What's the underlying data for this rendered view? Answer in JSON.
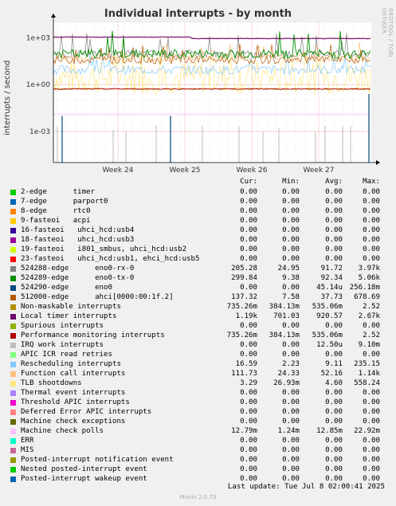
{
  "title": "Individual interrupts - by month",
  "side_tag": "RRDTOOL / TOBI OETIKER",
  "footer": "Last update: Tue Jul  8 02:00:41 2025",
  "version": "Munin 2.0.73",
  "chart_data": {
    "type": "line",
    "title": "Individual interrupts - by month",
    "ylabel": "interrupts / second",
    "y_scale": "log",
    "ylim": [
      1e-05,
      10000
    ],
    "y_ticks": [
      "1e+03",
      "1e+00",
      "1e-03"
    ],
    "y_tick_values": [
      1000,
      1,
      0.001
    ],
    "x_ticks": [
      "Week 24",
      "Week 25",
      "Week 26",
      "Week 27"
    ],
    "grid": true,
    "legend_placement": "below",
    "columns": [
      "Cur:",
      "Min:",
      "Avg:",
      "Max:"
    ],
    "series": [
      {
        "name": "2-edge      timer",
        "color": "#00cc00",
        "cur": "0.00",
        "min": "0.00",
        "avg": "0.00",
        "max": "0.00"
      },
      {
        "name": "7-edge      parport0",
        "color": "#0066b3",
        "cur": "0.00",
        "min": "0.00",
        "avg": "0.00",
        "max": "0.00"
      },
      {
        "name": "8-edge      rtc0",
        "color": "#ff8000",
        "cur": "0.00",
        "min": "0.00",
        "avg": "0.00",
        "max": "0.00"
      },
      {
        "name": "9-fasteoi   acpi",
        "color": "#ffcc00",
        "cur": "0.00",
        "min": "0.00",
        "avg": "0.00",
        "max": "0.00"
      },
      {
        "name": "16-fasteoi   uhci_hcd:usb4",
        "color": "#330099",
        "cur": "0.00",
        "min": "0.00",
        "avg": "0.00",
        "max": "0.00"
      },
      {
        "name": "18-fasteoi   uhci_hcd:usb3",
        "color": "#990099",
        "cur": "0.00",
        "min": "0.00",
        "avg": "0.00",
        "max": "0.00"
      },
      {
        "name": "19-fasteoi   i801_smbus, uhci_hcd:usb2",
        "color": "#ccff00",
        "cur": "0.00",
        "min": "0.00",
        "avg": "0.00",
        "max": "0.00"
      },
      {
        "name": "23-fasteoi   uhci_hcd:usb1, ehci_hcd:usb5",
        "color": "#ff0000",
        "cur": "0.00",
        "min": "0.00",
        "avg": "0.00",
        "max": "0.00"
      },
      {
        "name": "524288-edge      eno0-rx-0",
        "color": "#808080",
        "cur": "205.28",
        "min": "24.95",
        "avg": "91.72",
        "max": "3.97k"
      },
      {
        "name": "524289-edge      eno0-tx-0",
        "color": "#008f00",
        "cur": "299.84",
        "min": "9.38",
        "avg": "92.34",
        "max": "5.06k"
      },
      {
        "name": "524290-edge      eno0",
        "color": "#00487d",
        "cur": "0.00",
        "min": "0.00",
        "avg": "45.14u",
        "max": "256.18m"
      },
      {
        "name": "512000-edge      ahci[0000:00:1f.2]",
        "color": "#b35a00",
        "cur": "137.32",
        "min": "7.58",
        "avg": "37.73",
        "max": "678.69"
      },
      {
        "name": "Non-maskable interrupts",
        "color": "#b38f00",
        "cur": "735.26m",
        "min": "384.13m",
        "avg": "535.06m",
        "max": "2.52"
      },
      {
        "name": "Local timer interrupts",
        "color": "#6b006b",
        "cur": "1.19k",
        "min": "701.03",
        "avg": "920.57",
        "max": "2.67k"
      },
      {
        "name": "Spurious interrupts",
        "color": "#8fb300",
        "cur": "0.00",
        "min": "0.00",
        "avg": "0.00",
        "max": "0.00"
      },
      {
        "name": "Performance monitoring interrupts",
        "color": "#b30000",
        "cur": "735.26m",
        "min": "384.13m",
        "avg": "535.06m",
        "max": "2.52"
      },
      {
        "name": "IRQ work interrupts",
        "color": "#bebebe",
        "cur": "0.00",
        "min": "0.00",
        "avg": "12.50u",
        "max": "9.10m"
      },
      {
        "name": "APIC ICR read retries",
        "color": "#80ff80",
        "cur": "0.00",
        "min": "0.00",
        "avg": "0.00",
        "max": "0.00"
      },
      {
        "name": "Rescheduling interrupts",
        "color": "#80c9ff",
        "cur": "16.59",
        "min": "2.23",
        "avg": "9.11",
        "max": "235.15"
      },
      {
        "name": "Function call interrupts",
        "color": "#ffc080",
        "cur": "111.73",
        "min": "24.33",
        "avg": "52.16",
        "max": "1.14k"
      },
      {
        "name": "TLB shootdowns",
        "color": "#ffe680",
        "cur": "3.29",
        "min": "26.93m",
        "avg": "4.60",
        "max": "558.24"
      },
      {
        "name": "Thermal event interrupts",
        "color": "#aa80ff",
        "cur": "0.00",
        "min": "0.00",
        "avg": "0.00",
        "max": "0.00"
      },
      {
        "name": "Threshold APIC interrupts",
        "color": "#ee00cc",
        "cur": "0.00",
        "min": "0.00",
        "avg": "0.00",
        "max": "0.00"
      },
      {
        "name": "Deferred Error APIC interrupts",
        "color": "#ff8080",
        "cur": "0.00",
        "min": "0.00",
        "avg": "0.00",
        "max": "0.00"
      },
      {
        "name": "Machine check exceptions",
        "color": "#666600",
        "cur": "0.00",
        "min": "0.00",
        "avg": "0.00",
        "max": "0.00"
      },
      {
        "name": "Machine check polls",
        "color": "#ffbfff",
        "cur": "12.79m",
        "min": "1.24m",
        "avg": "12.85m",
        "max": "22.92m"
      },
      {
        "name": "ERR",
        "color": "#00ffcc",
        "cur": "0.00",
        "min": "0.00",
        "avg": "0.00",
        "max": "0.00"
      },
      {
        "name": "MIS",
        "color": "#cc6699",
        "cur": "0.00",
        "min": "0.00",
        "avg": "0.00",
        "max": "0.00"
      },
      {
        "name": "Posted-interrupt notification event",
        "color": "#999900",
        "cur": "0.00",
        "min": "0.00",
        "avg": "0.00",
        "max": "0.00"
      },
      {
        "name": "Nested posted-interrupt event",
        "color": "#00cc00",
        "cur": "0.00",
        "min": "0.00",
        "avg": "0.00",
        "max": "0.00"
      },
      {
        "name": "Posted-interrupt wakeup event",
        "color": "#0066b3",
        "cur": "0.00",
        "min": "0.00",
        "avg": "0.00",
        "max": "0.00"
      }
    ]
  }
}
